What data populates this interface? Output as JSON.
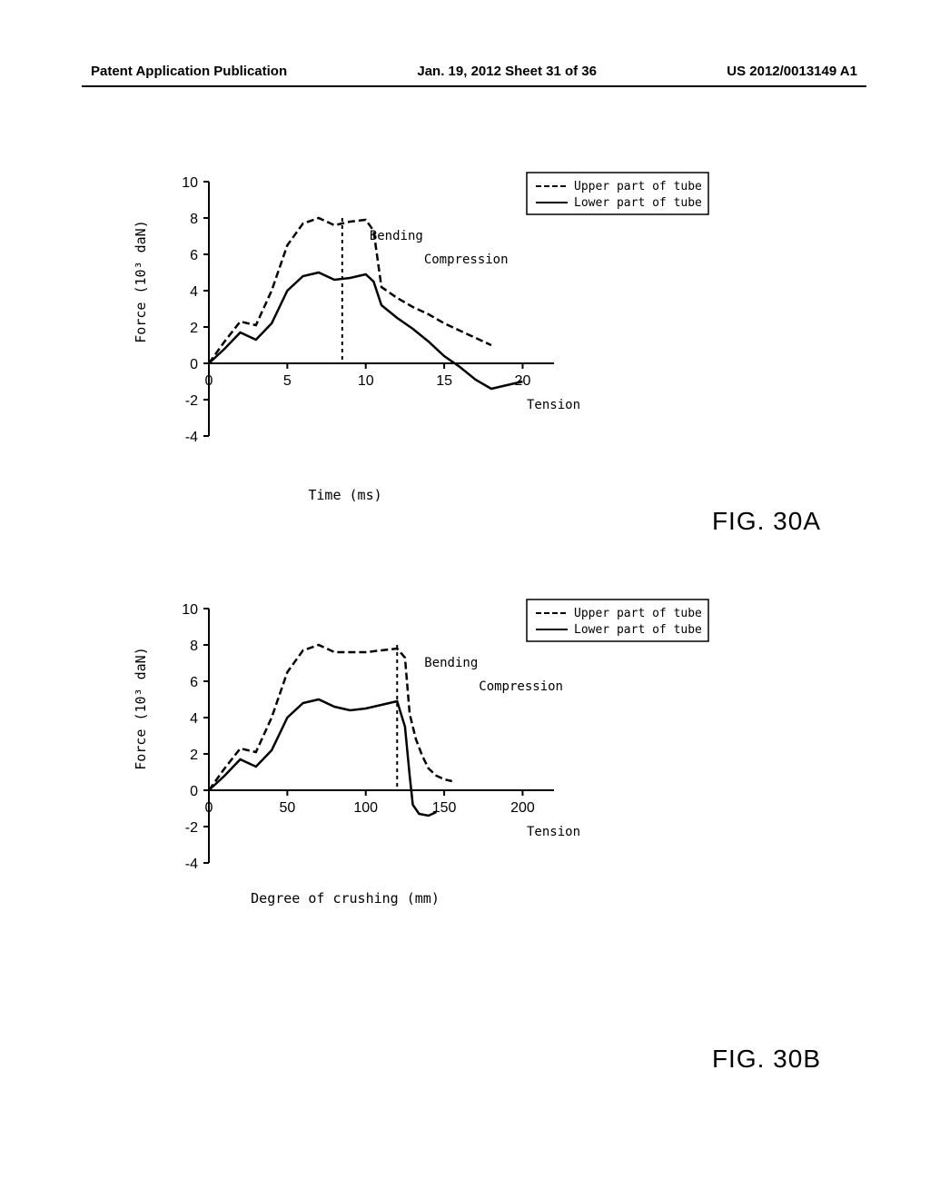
{
  "header": {
    "left": "Patent Application Publication",
    "center": "Jan. 19, 2012  Sheet 31 of 36",
    "right": "US 2012/0013149 A1"
  },
  "chart_a": {
    "type": "line",
    "title": "FIG. 30A",
    "y_axis_label": "Force (10³ daN)",
    "x_axis_label": "Time (ms)",
    "y_ticks": [
      -4,
      -2,
      0,
      2,
      4,
      6,
      8,
      10
    ],
    "x_ticks": [
      0,
      5,
      10,
      15,
      20
    ],
    "ylim": [
      -4,
      10
    ],
    "xlim": [
      0,
      22
    ],
    "legend": {
      "upper": "Upper part of tube",
      "lower": "Lower part of tube"
    },
    "annotations": {
      "bending": "Bending",
      "compression": "Compression",
      "tension": "Tension"
    },
    "vline_x": 8.5,
    "upper_curve": [
      [
        0,
        0
      ],
      [
        1,
        1.2
      ],
      [
        2,
        2.3
      ],
      [
        3,
        2.1
      ],
      [
        4,
        4
      ],
      [
        5,
        6.5
      ],
      [
        6,
        7.7
      ],
      [
        7,
        8
      ],
      [
        8,
        7.6
      ],
      [
        9,
        7.8
      ],
      [
        10,
        7.9
      ],
      [
        10.5,
        7.3
      ],
      [
        11,
        4.2
      ],
      [
        12,
        3.6
      ],
      [
        13,
        3.1
      ],
      [
        14,
        2.7
      ],
      [
        15,
        2.2
      ],
      [
        16,
        1.8
      ],
      [
        17,
        1.4
      ],
      [
        18,
        1
      ]
    ],
    "lower_curve": [
      [
        0,
        0
      ],
      [
        1,
        0.8
      ],
      [
        2,
        1.7
      ],
      [
        3,
        1.3
      ],
      [
        4,
        2.2
      ],
      [
        5,
        4
      ],
      [
        6,
        4.8
      ],
      [
        7,
        5
      ],
      [
        8,
        4.6
      ],
      [
        9,
        4.7
      ],
      [
        10,
        4.9
      ],
      [
        10.5,
        4.5
      ],
      [
        11,
        3.2
      ],
      [
        12,
        2.5
      ],
      [
        13,
        1.9
      ],
      [
        14,
        1.2
      ],
      [
        15,
        0.4
      ],
      [
        16,
        -0.2
      ],
      [
        17,
        -0.9
      ],
      [
        18,
        -1.4
      ],
      [
        19,
        -1.2
      ],
      [
        20,
        -1
      ]
    ],
    "colors": {
      "line": "#000000",
      "background": "#ffffff"
    }
  },
  "chart_b": {
    "type": "line",
    "title": "FIG. 30B",
    "y_axis_label": "Force (10³ daN)",
    "x_axis_label": "Degree of crushing  (mm)",
    "y_ticks": [
      -4,
      -2,
      0,
      2,
      4,
      6,
      8,
      10
    ],
    "x_ticks": [
      0,
      50,
      100,
      150,
      200
    ],
    "ylim": [
      -4,
      10
    ],
    "xlim": [
      0,
      220
    ],
    "legend": {
      "upper": "Upper part of tube",
      "lower": "Lower part of tube"
    },
    "annotations": {
      "bending": "Bending",
      "compression": "Compression",
      "tension": "Tension"
    },
    "vline_x": 120,
    "upper_curve": [
      [
        0,
        0
      ],
      [
        10,
        1.2
      ],
      [
        20,
        2.3
      ],
      [
        30,
        2.1
      ],
      [
        40,
        4
      ],
      [
        50,
        6.5
      ],
      [
        60,
        7.7
      ],
      [
        70,
        8
      ],
      [
        80,
        7.6
      ],
      [
        90,
        7.6
      ],
      [
        100,
        7.6
      ],
      [
        110,
        7.7
      ],
      [
        120,
        7.8
      ],
      [
        125,
        7.3
      ],
      [
        128,
        4.2
      ],
      [
        132,
        2.8
      ],
      [
        136,
        1.9
      ],
      [
        140,
        1.2
      ],
      [
        145,
        0.8
      ],
      [
        150,
        0.6
      ],
      [
        155,
        0.5
      ]
    ],
    "lower_curve": [
      [
        0,
        0
      ],
      [
        10,
        0.8
      ],
      [
        20,
        1.7
      ],
      [
        30,
        1.3
      ],
      [
        40,
        2.2
      ],
      [
        50,
        4
      ],
      [
        60,
        4.8
      ],
      [
        70,
        5
      ],
      [
        80,
        4.6
      ],
      [
        90,
        4.4
      ],
      [
        100,
        4.5
      ],
      [
        110,
        4.7
      ],
      [
        120,
        4.9
      ],
      [
        125,
        3.5
      ],
      [
        128,
        0.8
      ],
      [
        130,
        -0.8
      ],
      [
        134,
        -1.3
      ],
      [
        140,
        -1.4
      ],
      [
        145,
        -1.2
      ]
    ],
    "colors": {
      "line": "#000000",
      "background": "#ffffff"
    }
  }
}
